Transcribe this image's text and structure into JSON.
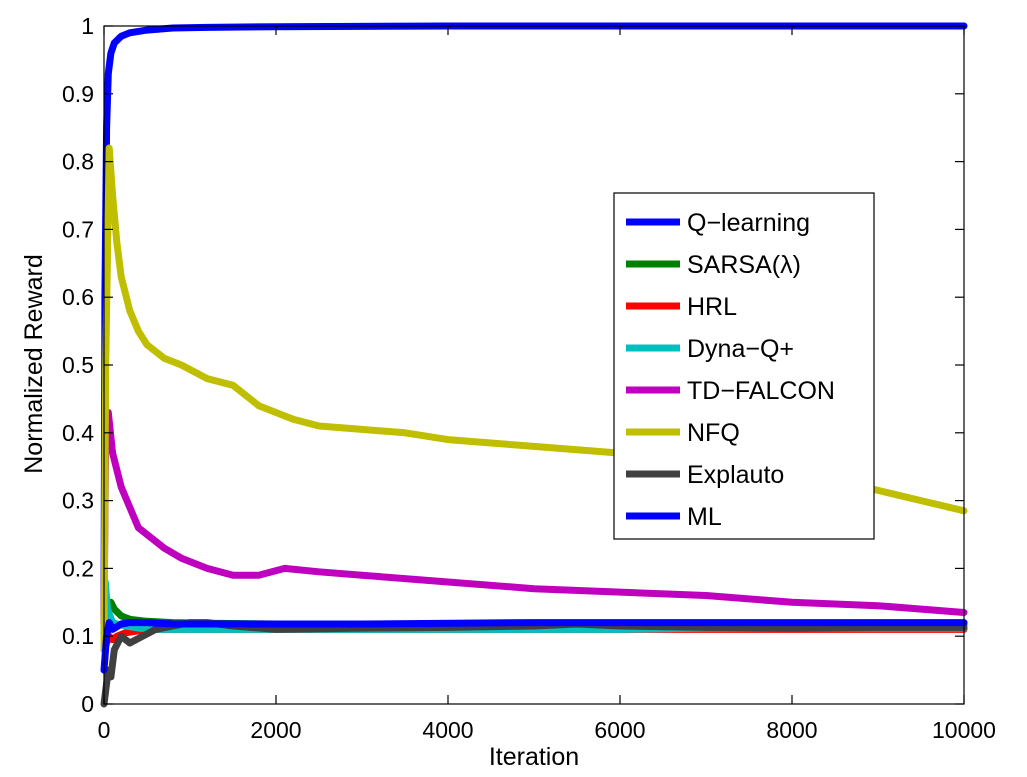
{
  "chart_data": {
    "type": "line",
    "title": "",
    "xlabel": "Iteration",
    "ylabel": "Normalized Reward",
    "xlim": [
      0,
      10000
    ],
    "ylim": [
      0,
      1
    ],
    "xticks": [
      0,
      2000,
      4000,
      6000,
      8000,
      10000
    ],
    "xtick_labels": [
      "0",
      "2000",
      "4000",
      "6000",
      "8000",
      "10000"
    ],
    "yticks": [
      0,
      0.1,
      0.2,
      0.3,
      0.4,
      0.5,
      0.6,
      0.7,
      0.8,
      0.9,
      1
    ],
    "ytick_labels": [
      "0",
      "0.1",
      "0.2",
      "0.3",
      "0.4",
      "0.5",
      "0.6",
      "0.7",
      "0.8",
      "0.9",
      "1"
    ],
    "grid": false,
    "legend_position": "center-right",
    "series": [
      {
        "name": "Q−learning",
        "color": "#0000ff",
        "x": [
          0,
          10,
          30,
          50,
          80,
          120,
          200,
          300,
          500,
          800,
          1200,
          2000,
          4000,
          6000,
          8000,
          10000
        ],
        "y": [
          0.12,
          0.6,
          0.85,
          0.93,
          0.96,
          0.975,
          0.985,
          0.99,
          0.994,
          0.997,
          0.998,
          0.999,
          1.0,
          1.0,
          1.0,
          1.0
        ]
      },
      {
        "name": "SARSA(λ)",
        "color": "#008000",
        "x": [
          0,
          30,
          80,
          120,
          200,
          300,
          500,
          800,
          1200,
          2000,
          3000,
          4000,
          5000,
          6000,
          7000,
          8000,
          9000,
          10000
        ],
        "y": [
          0.12,
          0.14,
          0.15,
          0.14,
          0.13,
          0.125,
          0.122,
          0.12,
          0.119,
          0.118,
          0.118,
          0.117,
          0.118,
          0.117,
          0.117,
          0.117,
          0.117,
          0.117
        ]
      },
      {
        "name": "HRL",
        "color": "#ff0000",
        "x": [
          0,
          30,
          60,
          100,
          150,
          250,
          400,
          600,
          1000,
          2000,
          3000,
          4000,
          5000,
          6000,
          7000,
          8000,
          9000,
          10000
        ],
        "y": [
          0.08,
          0.09,
          0.1,
          0.095,
          0.1,
          0.105,
          0.108,
          0.11,
          0.11,
          0.11,
          0.11,
          0.11,
          0.11,
          0.11,
          0.11,
          0.11,
          0.11,
          0.11
        ]
      },
      {
        "name": "Dyna−Q+",
        "color": "#00bfbf",
        "x": [
          0,
          15,
          40,
          70,
          100,
          150,
          250,
          400,
          600,
          1000,
          1500,
          2000,
          3000,
          4000,
          5000,
          6000,
          7000,
          8000,
          9000,
          10000
        ],
        "y": [
          0.1,
          0.18,
          0.14,
          0.13,
          0.12,
          0.118,
          0.115,
          0.112,
          0.11,
          0.11,
          0.11,
          0.11,
          0.11,
          0.11,
          0.11,
          0.11,
          0.112,
          0.112,
          0.112,
          0.112
        ]
      },
      {
        "name": "TD−FALCON",
        "color": "#bf00bf",
        "x": [
          0,
          20,
          50,
          100,
          200,
          300,
          400,
          500,
          700,
          900,
          1200,
          1500,
          1800,
          2100,
          2500,
          3000,
          4000,
          5000,
          6000,
          7000,
          8000,
          9000,
          10000
        ],
        "y": [
          0.12,
          0.4,
          0.43,
          0.37,
          0.32,
          0.29,
          0.26,
          0.25,
          0.23,
          0.215,
          0.2,
          0.19,
          0.19,
          0.2,
          0.195,
          0.19,
          0.18,
          0.17,
          0.165,
          0.16,
          0.15,
          0.145,
          0.135
        ]
      },
      {
        "name": "NFQ",
        "color": "#bfbf00",
        "x": [
          0,
          20,
          60,
          100,
          150,
          200,
          300,
          400,
          500,
          700,
          900,
          1200,
          1500,
          1800,
          2200,
          2500,
          3000,
          3500,
          4000,
          4500,
          5000,
          5500,
          6000,
          6500,
          7000,
          7500,
          8000,
          8500,
          9000,
          9500,
          10000
        ],
        "y": [
          0.08,
          0.5,
          0.82,
          0.75,
          0.68,
          0.63,
          0.58,
          0.55,
          0.53,
          0.51,
          0.5,
          0.48,
          0.47,
          0.44,
          0.42,
          0.41,
          0.405,
          0.4,
          0.39,
          0.385,
          0.38,
          0.375,
          0.37,
          0.37,
          0.365,
          0.36,
          0.35,
          0.33,
          0.315,
          0.3,
          0.285
        ]
      },
      {
        "name": "Explauto",
        "color": "#404040",
        "x": [
          0,
          20,
          50,
          80,
          120,
          200,
          300,
          450,
          600,
          800,
          1000,
          1200,
          1500,
          2000,
          3000,
          4000,
          5000,
          5500,
          6000,
          7000,
          8000,
          9000,
          10000
        ],
        "y": [
          0.0,
          0.02,
          0.05,
          0.04,
          0.08,
          0.1,
          0.09,
          0.1,
          0.11,
          0.115,
          0.12,
          0.12,
          0.115,
          0.11,
          0.112,
          0.113,
          0.115,
          0.118,
          0.115,
          0.113,
          0.112,
          0.113,
          0.113
        ]
      },
      {
        "name": "ML",
        "color": "#0000ff",
        "x": [
          0,
          30,
          60,
          100,
          200,
          300,
          500,
          800,
          1500,
          3000,
          5000,
          7000,
          8500,
          10000
        ],
        "y": [
          0.05,
          0.1,
          0.12,
          0.11,
          0.118,
          0.12,
          0.12,
          0.118,
          0.118,
          0.118,
          0.12,
          0.12,
          0.12,
          0.12
        ]
      }
    ]
  }
}
